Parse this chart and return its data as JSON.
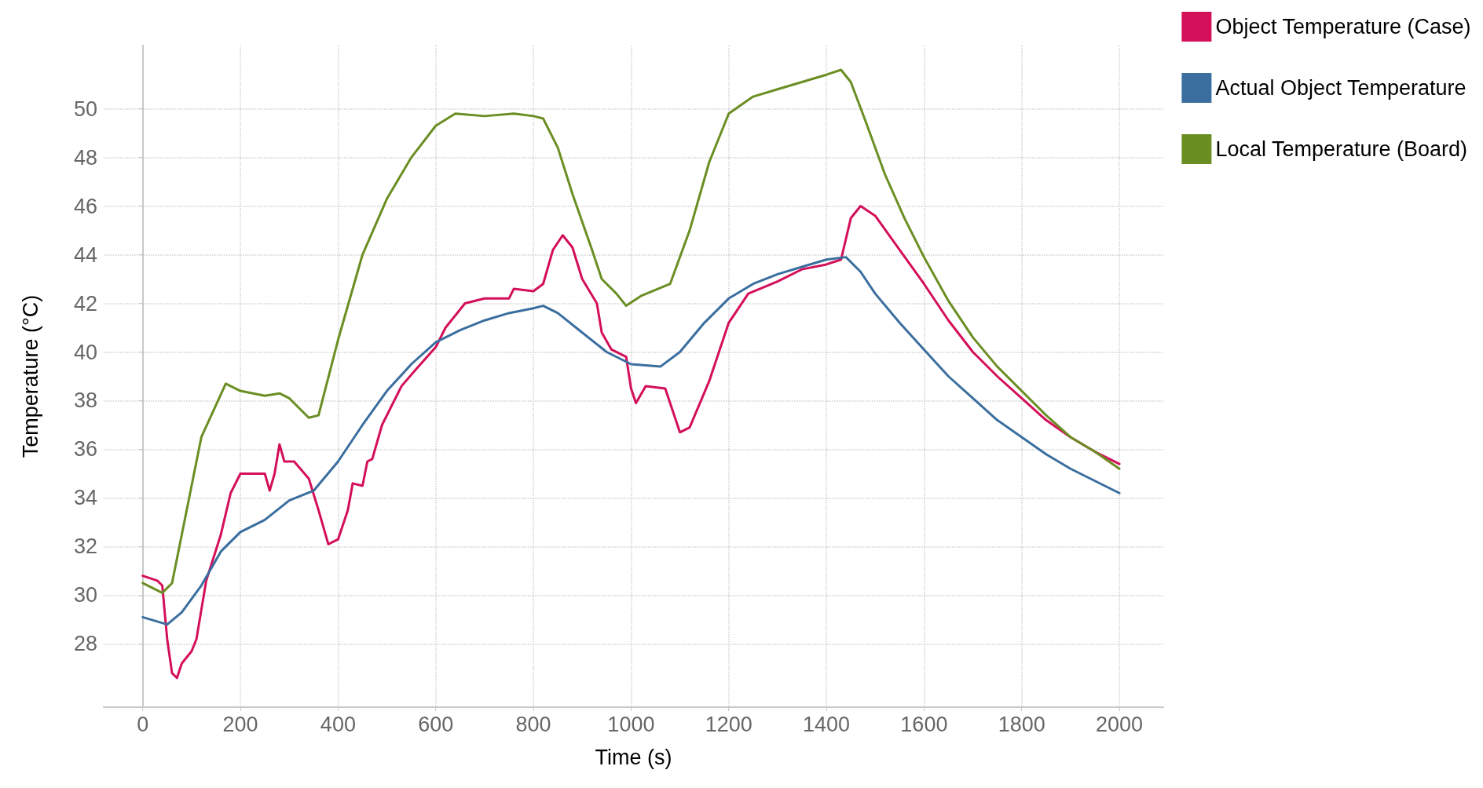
{
  "chart_data": {
    "type": "line",
    "xlabel": "Time (s)",
    "ylabel": "Temperature (°C)",
    "xlim": [
      -80,
      2090
    ],
    "xticks": [
      0,
      200,
      400,
      600,
      800,
      1000,
      1200,
      1400,
      1600,
      1800,
      2000
    ],
    "ylim": [
      25.4,
      52.6
    ],
    "yticks": [
      28,
      30,
      32,
      34,
      36,
      38,
      40,
      42,
      44,
      46,
      48,
      50
    ],
    "grid": true,
    "legend": "top right",
    "marker": "none",
    "line_style": "solid",
    "series": [
      {
        "name": "Object Temperature (Case)",
        "color": "#d40f5a",
        "x": [
          0,
          30,
          40,
          50,
          60,
          70,
          80,
          100,
          110,
          130,
          160,
          180,
          200,
          250,
          260,
          270,
          280,
          290,
          310,
          340,
          360,
          380,
          400,
          420,
          430,
          450,
          460,
          470,
          490,
          530,
          560,
          600,
          620,
          660,
          700,
          750,
          760,
          800,
          820,
          840,
          860,
          880,
          900,
          930,
          940,
          960,
          990,
          1000,
          1010,
          1030,
          1070,
          1100,
          1120,
          1160,
          1200,
          1240,
          1300,
          1350,
          1400,
          1430,
          1450,
          1470,
          1500,
          1550,
          1600,
          1650,
          1700,
          1750,
          1800,
          1850,
          1900,
          1950,
          2000
        ],
        "values": [
          30.8,
          30.6,
          30.4,
          28.2,
          26.8,
          26.6,
          27.2,
          27.7,
          28.2,
          30.6,
          32.5,
          34.2,
          35,
          35,
          34.3,
          35,
          36.2,
          35.5,
          35.5,
          34.8,
          33.5,
          32.1,
          32.3,
          33.5,
          34.6,
          34.5,
          35.5,
          35.6,
          37,
          38.6,
          39.3,
          40.2,
          41,
          42,
          42.2,
          42.2,
          42.6,
          42.5,
          42.8,
          44.2,
          44.8,
          44.3,
          43,
          42,
          40.8,
          40.1,
          39.8,
          38.5,
          37.9,
          38.6,
          38.5,
          36.7,
          36.9,
          38.8,
          41.2,
          42.4,
          42.9,
          43.4,
          43.6,
          43.8,
          45.5,
          46,
          45.6,
          44.2,
          42.8,
          41.3,
          40,
          39,
          38.1,
          37.2,
          36.5,
          35.9,
          35.4
        ]
      },
      {
        "name": "Actual Object Temperature",
        "color": "#3a6e9e",
        "x": [
          0,
          50,
          80,
          120,
          160,
          200,
          250,
          300,
          350,
          400,
          450,
          500,
          550,
          600,
          650,
          700,
          750,
          800,
          820,
          850,
          900,
          950,
          1000,
          1060,
          1100,
          1150,
          1200,
          1250,
          1300,
          1350,
          1400,
          1440,
          1470,
          1500,
          1550,
          1600,
          1650,
          1700,
          1750,
          1800,
          1850,
          1900,
          1950,
          2000
        ],
        "values": [
          29.1,
          28.8,
          29.3,
          30.4,
          31.8,
          32.6,
          33.1,
          33.9,
          34.3,
          35.5,
          37,
          38.4,
          39.5,
          40.4,
          40.9,
          41.3,
          41.6,
          41.8,
          41.9,
          41.6,
          40.8,
          40,
          39.5,
          39.4,
          40,
          41.2,
          42.2,
          42.8,
          43.2,
          43.5,
          43.8,
          43.9,
          43.3,
          42.4,
          41.2,
          40.1,
          39,
          38.1,
          37.2,
          36.5,
          35.8,
          35.2,
          34.7,
          34.2
        ]
      },
      {
        "name": "Local Temperature (Board)",
        "color": "#6b8e23",
        "x": [
          0,
          40,
          60,
          120,
          170,
          200,
          250,
          280,
          300,
          340,
          360,
          400,
          450,
          500,
          550,
          600,
          640,
          700,
          760,
          800,
          820,
          850,
          880,
          920,
          940,
          970,
          990,
          1020,
          1080,
          1120,
          1160,
          1200,
          1250,
          1300,
          1350,
          1400,
          1430,
          1450,
          1480,
          1520,
          1560,
          1600,
          1650,
          1700,
          1750,
          1800,
          1850,
          1900,
          1950,
          2000
        ],
        "values": [
          30.5,
          30.1,
          30.5,
          36.5,
          38.7,
          38.4,
          38.2,
          38.3,
          38.1,
          37.3,
          37.4,
          40.5,
          44,
          46.3,
          48,
          49.3,
          49.8,
          49.7,
          49.8,
          49.7,
          49.6,
          48.4,
          46.5,
          44.2,
          43,
          42.4,
          41.9,
          42.3,
          42.8,
          45,
          47.8,
          49.8,
          50.5,
          50.8,
          51.1,
          51.4,
          51.6,
          51.1,
          49.5,
          47.3,
          45.5,
          43.9,
          42.1,
          40.6,
          39.4,
          38.4,
          37.4,
          36.5,
          35.9,
          35.2
        ]
      }
    ]
  }
}
